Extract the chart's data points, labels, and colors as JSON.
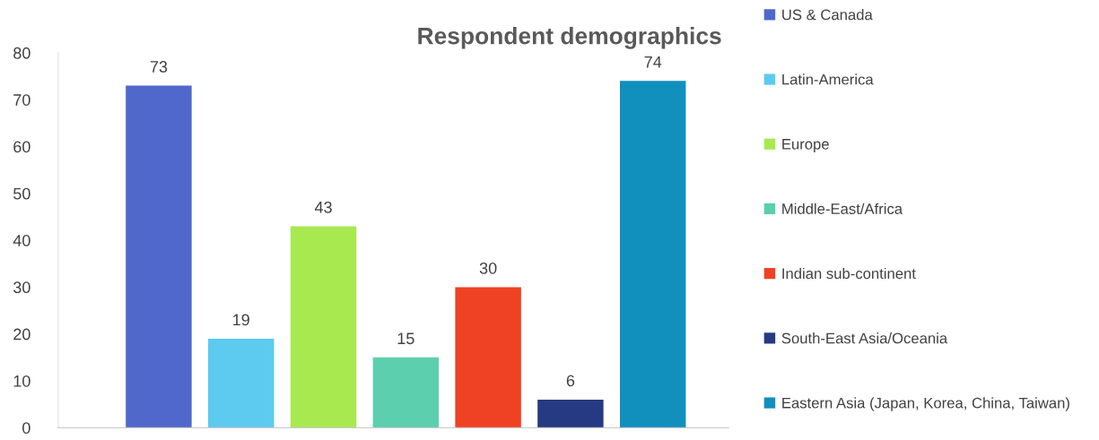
{
  "chart_data": {
    "type": "bar",
    "title": "Respondent demographics",
    "categories": [
      null,
      null,
      null,
      null,
      null,
      null,
      null
    ],
    "series": [
      {
        "name": "US & Canada",
        "color": "#5068cc",
        "values": [
          73,
          null,
          null,
          null,
          null,
          null,
          null
        ]
      },
      {
        "name": "Latin-America",
        "color": "#5dcaf0",
        "values": [
          null,
          19,
          null,
          null,
          null,
          null,
          null
        ]
      },
      {
        "name": "Europe",
        "color": "#a8e950",
        "values": [
          null,
          null,
          43,
          null,
          null,
          null,
          null
        ]
      },
      {
        "name": "Middle-East/Africa",
        "color": "#5ccfae",
        "values": [
          null,
          null,
          null,
          15,
          null,
          null,
          null
        ]
      },
      {
        "name": "Indian sub-continent",
        "color": "#ef4123",
        "values": [
          null,
          null,
          null,
          null,
          30,
          null,
          null
        ]
      },
      {
        "name": "South-East Asia/Oceania",
        "color": "#253a82",
        "values": [
          null,
          null,
          null,
          null,
          null,
          6,
          null
        ]
      },
      {
        "name": "Eastern Asia (Japan, Korea, China, Taiwan)",
        "color": "#118fbd",
        "values": [
          null,
          null,
          null,
          null,
          null,
          null,
          74
        ]
      }
    ],
    "ylim": [
      0,
      80
    ],
    "yticks": [
      0,
      10,
      20,
      30,
      40,
      50,
      60,
      70,
      80
    ],
    "stacked": true,
    "data_labels": true,
    "grid": false,
    "legend": "right"
  }
}
